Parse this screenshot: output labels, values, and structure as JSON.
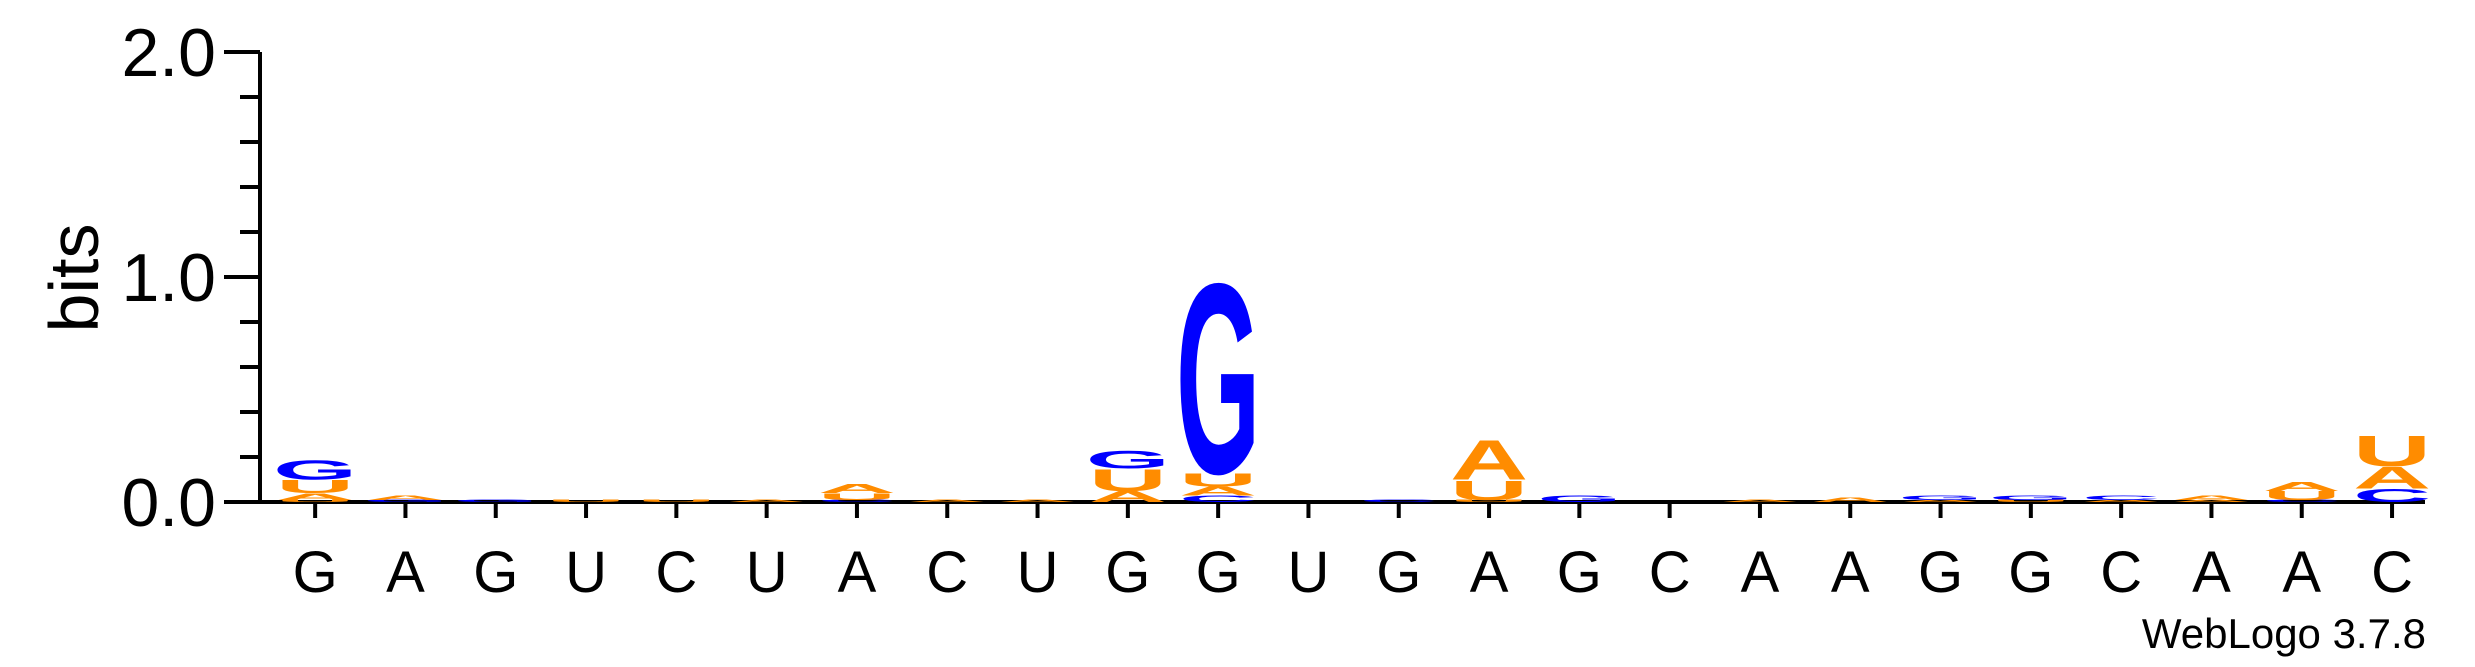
{
  "chart_data": {
    "type": "sequence-logo",
    "ylabel": "bits",
    "ylim": [
      0,
      2.0
    ],
    "yticks": [
      "0.0",
      "1.0",
      "2.0"
    ],
    "grid": false,
    "legend": "none",
    "credit": "WebLogo 3.7.8",
    "colors": {
      "G": "#0000ff",
      "C": "#0000ff",
      "A": "#ff8c00",
      "U": "#ff8c00"
    },
    "positions": [
      {
        "label": "G",
        "stack": [
          [
            "U",
            0.01
          ],
          [
            "A",
            0.03
          ],
          [
            "U",
            0.06
          ],
          [
            "G",
            0.09
          ]
        ]
      },
      {
        "label": "A",
        "stack": [
          [
            "G",
            0.01
          ],
          [
            "A",
            0.02
          ]
        ]
      },
      {
        "label": "G",
        "stack": [
          [
            "G",
            0.01
          ]
        ]
      },
      {
        "label": "U",
        "stack": [
          [
            "U",
            0.01
          ]
        ]
      },
      {
        "label": "C",
        "stack": [
          [
            "U",
            0.01
          ]
        ]
      },
      {
        "label": "U",
        "stack": [
          [
            "A",
            0.01
          ]
        ]
      },
      {
        "label": "A",
        "stack": [
          [
            "C",
            0.01
          ],
          [
            "U",
            0.03
          ],
          [
            "A",
            0.04
          ]
        ]
      },
      {
        "label": "C",
        "stack": [
          [
            "A",
            0.01
          ]
        ]
      },
      {
        "label": "U",
        "stack": [
          [
            "A",
            0.01
          ]
        ]
      },
      {
        "label": "G",
        "stack": [
          [
            "A",
            0.05
          ],
          [
            "U",
            0.1
          ],
          [
            "G",
            0.08
          ]
        ]
      },
      {
        "label": "G",
        "stack": [
          [
            "C",
            0.03
          ],
          [
            "A",
            0.04
          ],
          [
            "U",
            0.06
          ],
          [
            "G",
            0.87
          ]
        ]
      },
      {
        "label": "U",
        "stack": []
      },
      {
        "label": "G",
        "stack": [
          [
            "C",
            0.01
          ]
        ]
      },
      {
        "label": "A",
        "stack": [
          [
            "U",
            0.01
          ],
          [
            "U",
            0.09
          ],
          [
            "A",
            0.18
          ]
        ]
      },
      {
        "label": "G",
        "stack": [
          [
            "G",
            0.03
          ]
        ]
      },
      {
        "label": "C",
        "stack": []
      },
      {
        "label": "A",
        "stack": [
          [
            "A",
            0.01
          ]
        ]
      },
      {
        "label": "A",
        "stack": [
          [
            "A",
            0.02
          ]
        ]
      },
      {
        "label": "G",
        "stack": [
          [
            "A",
            0.01
          ],
          [
            "G",
            0.02
          ]
        ]
      },
      {
        "label": "G",
        "stack": [
          [
            "U",
            0.01
          ],
          [
            "G",
            0.02
          ]
        ]
      },
      {
        "label": "C",
        "stack": [
          [
            "A",
            0.01
          ],
          [
            "C",
            0.02
          ]
        ]
      },
      {
        "label": "A",
        "stack": [
          [
            "A",
            0.01
          ],
          [
            "A",
            0.02
          ]
        ]
      },
      {
        "label": "A",
        "stack": [
          [
            "C",
            0.01
          ],
          [
            "U",
            0.04
          ],
          [
            "A",
            0.04
          ]
        ]
      },
      {
        "label": "C",
        "stack": [
          [
            "C",
            0.06
          ],
          [
            "A",
            0.1
          ],
          [
            "U",
            0.14
          ]
        ]
      }
    ]
  }
}
